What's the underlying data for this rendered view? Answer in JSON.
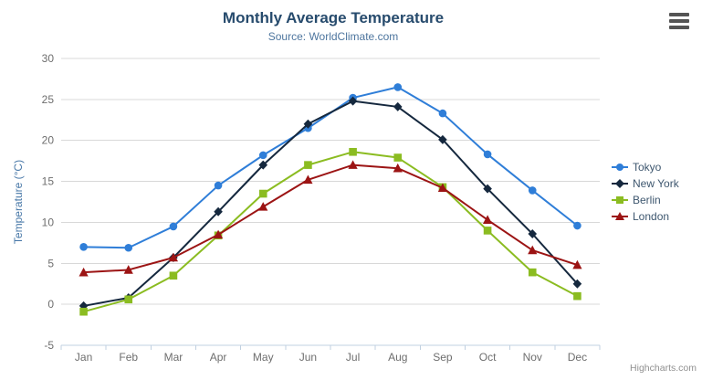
{
  "header": {
    "title": "Monthly Average Temperature",
    "subtitle": "Source: WorldClimate.com"
  },
  "credits": {
    "label": "Highcharts.com"
  },
  "colors": {
    "title": "#274b6d",
    "subtitle": "#4d759e",
    "axis_label": "#6e6e6e",
    "yaxis_title": "#4878a8",
    "gridline": "#d8d8d8",
    "axis_line": "#c0d0e0",
    "legend_text": "#3e576f",
    "credits_text": "#909090"
  },
  "chart_data": {
    "type": "line",
    "title": "Monthly Average Temperature",
    "subtitle": "Source: WorldClimate.com",
    "categories": [
      "Jan",
      "Feb",
      "Mar",
      "Apr",
      "May",
      "Jun",
      "Jul",
      "Aug",
      "Sep",
      "Oct",
      "Nov",
      "Dec"
    ],
    "xlabel": "",
    "ylabel": "Temperature (°C)",
    "yaxis": {
      "title": "Temperature (°C)",
      "min": -5,
      "max": 30,
      "tick_interval": 5,
      "tick_labels": [
        "-5",
        "0",
        "5",
        "10",
        "15",
        "20",
        "25",
        "30"
      ]
    },
    "grid": true,
    "legend_position": "right",
    "series": [
      {
        "name": "Tokyo",
        "color": "#2f7ed8",
        "marker": "circle",
        "values": [
          7.0,
          6.9,
          9.5,
          14.5,
          18.2,
          21.5,
          25.2,
          26.5,
          23.3,
          18.3,
          13.9,
          9.6
        ]
      },
      {
        "name": "New York",
        "color": "#15283e",
        "marker": "diamond",
        "values": [
          -0.2,
          0.8,
          5.7,
          11.3,
          17.0,
          22.0,
          24.8,
          24.1,
          20.1,
          14.1,
          8.6,
          2.5
        ]
      },
      {
        "name": "Berlin",
        "color": "#8bbc21",
        "marker": "square",
        "values": [
          -0.9,
          0.6,
          3.5,
          8.4,
          13.5,
          17.0,
          18.6,
          17.9,
          14.3,
          9.0,
          3.9,
          1.0
        ]
      },
      {
        "name": "London",
        "color": "#9c1414",
        "marker": "triangle",
        "values": [
          3.9,
          4.2,
          5.7,
          8.5,
          11.9,
          15.2,
          17.0,
          16.6,
          14.2,
          10.3,
          6.6,
          4.8
        ]
      }
    ]
  }
}
